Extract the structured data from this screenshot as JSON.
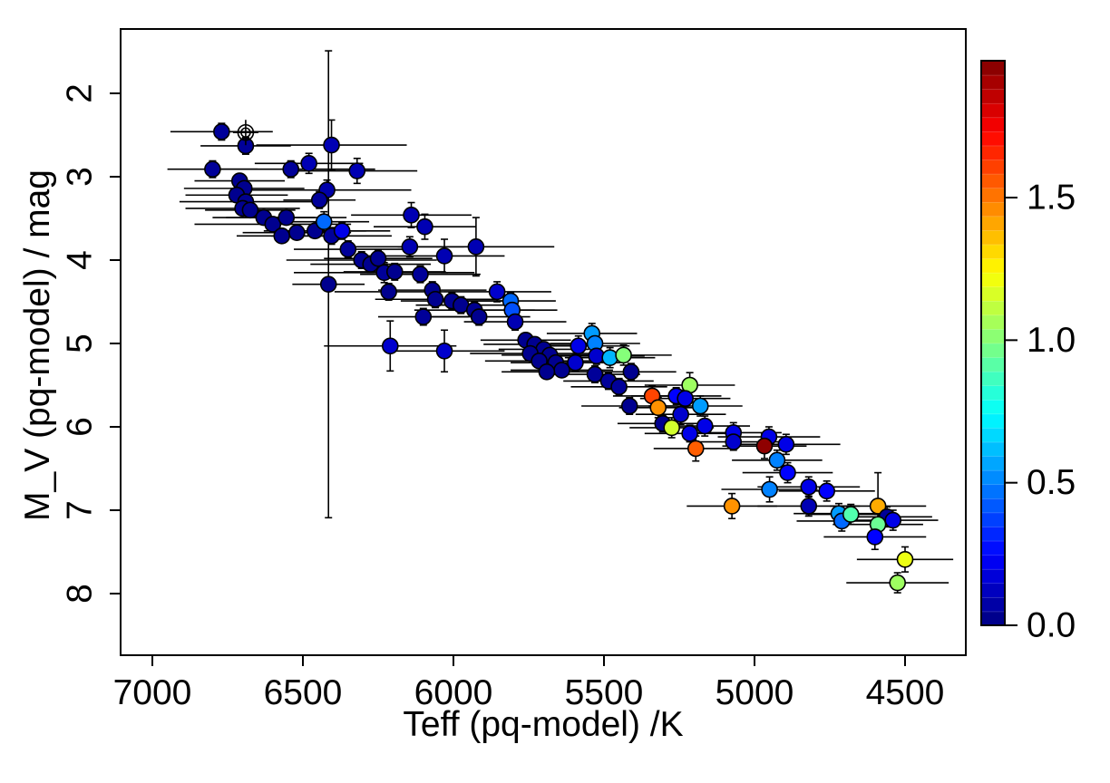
{
  "figure": {
    "background": "#ffffff",
    "axis_color": "#000000"
  },
  "chart_data": {
    "type": "scatter",
    "title": "",
    "xlabel": "Teff (pq-model) /K",
    "ylabel": "M_V (pq-model) / mag",
    "x_axis": {
      "ticks": [
        7000,
        6500,
        6000,
        5500,
        5000,
        4500
      ],
      "range": [
        7105,
        4320
      ],
      "reversed": true,
      "grid": false
    },
    "y_axis": {
      "ticks": [
        2,
        3,
        4,
        5,
        6,
        7,
        8
      ],
      "range": [
        1.23,
        8.74
      ],
      "reversed": true,
      "grid": false
    },
    "colorbar": {
      "min": 0.0,
      "max": 1.98,
      "ticks": [
        0.0,
        0.5,
        1.0,
        1.5
      ],
      "tick_labels": [
        "0.0",
        "0.5",
        "1.0",
        "1.5"
      ],
      "colormap": "jet",
      "levels": 40,
      "position": "right"
    },
    "marker": {
      "shape": "circle",
      "radius_px": 8.5,
      "outline": "#000000"
    },
    "special_points": [
      {
        "teff": 6690,
        "mv": 2.47,
        "marker": "open-circle-cross",
        "note": "open double-circle with cross"
      }
    ],
    "series": [
      {
        "name": "stars",
        "point_format": [
          "teff_K",
          "M_V_mag",
          "color_value",
          "xerr_K",
          "yerr_mag"
        ],
        "points": [
          [
            6770,
            2.46,
            0.05,
            170,
            0.1
          ],
          [
            6690,
            2.63,
            0.05,
            150,
            0.1
          ],
          [
            6405,
            2.62,
            0.1,
            250,
            0.3
          ],
          [
            6800,
            2.91,
            0.05,
            150,
            0.1
          ],
          [
            6540,
            2.91,
            0.05,
            280,
            0.1
          ],
          [
            6480,
            2.84,
            0.1,
            180,
            0.12
          ],
          [
            6320,
            2.93,
            0.1,
            200,
            0.15
          ],
          [
            6420,
            3.16,
            0.08,
            280,
            0.12
          ],
          [
            6445,
            3.28,
            0.05,
            120,
            0.1
          ],
          [
            6710,
            3.05,
            0.03,
            150,
            0.08
          ],
          [
            6695,
            3.14,
            0.03,
            200,
            0.08
          ],
          [
            6720,
            3.22,
            0.03,
            170,
            0.08
          ],
          [
            6690,
            3.3,
            0.03,
            220,
            0.08
          ],
          [
            6700,
            3.38,
            0.03,
            190,
            0.08
          ],
          [
            6675,
            3.4,
            0.03,
            150,
            0.08
          ],
          [
            6630,
            3.49,
            0.03,
            170,
            0.08
          ],
          [
            6600,
            3.57,
            0.03,
            260,
            0.08
          ],
          [
            6555,
            3.49,
            0.03,
            200,
            0.08
          ],
          [
            6570,
            3.71,
            0.03,
            150,
            0.08
          ],
          [
            6520,
            3.67,
            0.03,
            180,
            0.08
          ],
          [
            6460,
            3.65,
            0.03,
            170,
            0.08
          ],
          [
            6430,
            3.54,
            0.45,
            150,
            0.12
          ],
          [
            6405,
            3.71,
            0.05,
            200,
            0.1
          ],
          [
            6370,
            3.65,
            0.2,
            160,
            0.1
          ],
          [
            6350,
            3.87,
            0.05,
            180,
            0.1
          ],
          [
            6305,
            4.0,
            0.03,
            250,
            0.1
          ],
          [
            6275,
            4.05,
            0.03,
            200,
            0.1
          ],
          [
            6250,
            3.98,
            0.03,
            180,
            0.1
          ],
          [
            6230,
            4.15,
            0.05,
            300,
            0.12
          ],
          [
            6195,
            4.14,
            0.03,
            170,
            0.1
          ],
          [
            6215,
            4.38,
            0.03,
            180,
            0.1
          ],
          [
            6140,
            3.46,
            0.1,
            200,
            0.15
          ],
          [
            6095,
            3.6,
            0.1,
            170,
            0.15
          ],
          [
            6030,
            3.95,
            0.1,
            200,
            0.2
          ],
          [
            5925,
            3.84,
            0.1,
            260,
            0.35
          ],
          [
            6145,
            3.84,
            0.1,
            180,
            0.12
          ],
          [
            6110,
            4.17,
            0.05,
            200,
            0.1
          ],
          [
            6415,
            4.29,
            0.03,
            120,
            2.8
          ],
          [
            6070,
            4.36,
            0.03,
            180,
            0.1
          ],
          [
            6060,
            4.47,
            0.03,
            200,
            0.1
          ],
          [
            6005,
            4.49,
            0.03,
            170,
            0.1
          ],
          [
            5975,
            4.54,
            0.03,
            150,
            0.1
          ],
          [
            5930,
            4.6,
            0.03,
            200,
            0.1
          ],
          [
            5915,
            4.68,
            0.03,
            170,
            0.1
          ],
          [
            6100,
            4.68,
            0.05,
            150,
            0.1
          ],
          [
            5855,
            4.38,
            0.15,
            180,
            0.12
          ],
          [
            5810,
            4.49,
            0.45,
            150,
            0.1
          ],
          [
            5805,
            4.6,
            0.4,
            150,
            0.1
          ],
          [
            5795,
            4.74,
            0.1,
            170,
            0.1
          ],
          [
            6210,
            5.03,
            0.15,
            220,
            0.3
          ],
          [
            6030,
            5.09,
            0.15,
            200,
            0.25
          ],
          [
            5760,
            4.96,
            0.03,
            150,
            0.08
          ],
          [
            5730,
            5.01,
            0.03,
            170,
            0.08
          ],
          [
            5700,
            5.07,
            0.03,
            150,
            0.08
          ],
          [
            5745,
            5.12,
            0.03,
            200,
            0.08
          ],
          [
            5680,
            5.14,
            0.03,
            160,
            0.08
          ],
          [
            5715,
            5.21,
            0.03,
            180,
            0.08
          ],
          [
            5660,
            5.23,
            0.03,
            150,
            0.08
          ],
          [
            5640,
            5.32,
            0.03,
            170,
            0.08
          ],
          [
            5690,
            5.34,
            0.03,
            150,
            0.08
          ],
          [
            5585,
            5.03,
            0.2,
            170,
            0.12
          ],
          [
            5595,
            5.23,
            0.15,
            150,
            0.1
          ],
          [
            5540,
            4.88,
            0.55,
            150,
            0.12
          ],
          [
            5530,
            5.0,
            0.5,
            150,
            0.12
          ],
          [
            5525,
            5.15,
            0.15,
            160,
            0.1
          ],
          [
            5480,
            5.17,
            0.6,
            150,
            0.12
          ],
          [
            5435,
            5.14,
            1.0,
            160,
            0.12
          ],
          [
            5530,
            5.37,
            0.05,
            150,
            0.1
          ],
          [
            5485,
            5.45,
            0.05,
            150,
            0.1
          ],
          [
            5450,
            5.52,
            0.05,
            160,
            0.1
          ],
          [
            5410,
            5.34,
            0.03,
            150,
            0.1
          ],
          [
            5415,
            5.75,
            0.03,
            160,
            0.1
          ],
          [
            5340,
            5.63,
            1.6,
            130,
            0.12
          ],
          [
            5320,
            5.77,
            1.45,
            130,
            0.12
          ],
          [
            5215,
            5.5,
            1.05,
            150,
            0.15
          ],
          [
            5260,
            5.63,
            0.25,
            150,
            0.1
          ],
          [
            5230,
            5.66,
            0.2,
            150,
            0.1
          ],
          [
            5245,
            5.85,
            0.15,
            150,
            0.12
          ],
          [
            5180,
            5.75,
            0.55,
            140,
            0.12
          ],
          [
            5305,
            5.96,
            0.03,
            150,
            0.1
          ],
          [
            5275,
            6.01,
            1.15,
            140,
            0.12
          ],
          [
            5215,
            6.08,
            0.2,
            150,
            0.1
          ],
          [
            5165,
            5.99,
            0.2,
            150,
            0.12
          ],
          [
            5195,
            6.26,
            1.55,
            140,
            0.15
          ],
          [
            5070,
            6.07,
            0.2,
            160,
            0.12
          ],
          [
            5070,
            6.18,
            0.15,
            150,
            0.1
          ],
          [
            4952,
            6.12,
            0.2,
            170,
            0.12
          ],
          [
            4967,
            6.23,
            1.95,
            140,
            0.15
          ],
          [
            4895,
            6.21,
            0.2,
            180,
            0.12
          ],
          [
            4925,
            6.4,
            0.5,
            150,
            0.12
          ],
          [
            4890,
            6.55,
            0.25,
            150,
            0.12
          ],
          [
            4950,
            6.75,
            0.5,
            160,
            0.15
          ],
          [
            4820,
            6.72,
            0.2,
            170,
            0.12
          ],
          [
            4760,
            6.77,
            0.25,
            160,
            0.12
          ],
          [
            4820,
            6.95,
            0.1,
            170,
            0.12
          ],
          [
            5075,
            6.95,
            1.45,
            150,
            0.15
          ],
          [
            4720,
            7.04,
            0.55,
            150,
            0.12
          ],
          [
            4710,
            7.13,
            0.45,
            150,
            0.12
          ],
          [
            4680,
            7.05,
            0.9,
            150,
            0.12
          ],
          [
            4590,
            6.95,
            1.4,
            160,
            0.4
          ],
          [
            4560,
            7.08,
            0.05,
            150,
            0.12
          ],
          [
            4540,
            7.12,
            0.2,
            150,
            0.12
          ],
          [
            4590,
            7.17,
            0.95,
            150,
            0.12
          ],
          [
            4600,
            7.32,
            0.25,
            170,
            0.15
          ],
          [
            4500,
            7.59,
            1.2,
            160,
            0.15
          ],
          [
            4525,
            7.87,
            1.05,
            170,
            0.12
          ]
        ]
      }
    ]
  }
}
